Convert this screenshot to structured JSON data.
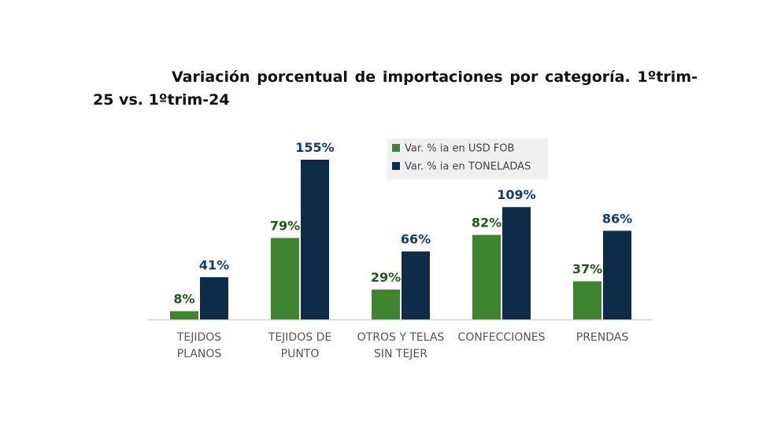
{
  "title": "Variación porcentual de importaciones por categoría. 1ºtrim-25 vs. 1ºtrim-24",
  "colors": {
    "usd": "#3f852f",
    "ton": "#0e2c48",
    "usd_label": "#1d5a18",
    "ton_label": "#123a6b",
    "axis": "#d0d0d0",
    "legend_bg": "#efefef"
  },
  "chart_data": {
    "type": "bar",
    "title": "Variación porcentual de importaciones por categoría. 1ºtrim-25 vs. 1ºtrim-24",
    "categories": [
      [
        "TEJIDOS",
        "PLANOS"
      ],
      [
        "TEJIDOS DE",
        "PUNTO"
      ],
      [
        "OTROS Y TELAS",
        "SIN TEJER"
      ],
      [
        "CONFECCIONES"
      ],
      [
        "PRENDAS"
      ]
    ],
    "series": [
      {
        "name": "Var. % ia en USD FOB",
        "values": [
          8,
          79,
          29,
          82,
          37
        ],
        "labels": [
          "8%",
          "79%",
          "29%",
          "82%",
          "37%"
        ]
      },
      {
        "name": "Var. % ia en TONELADAS",
        "values": [
          41,
          155,
          66,
          109,
          86
        ],
        "labels": [
          "41%",
          "155%",
          "66%",
          "109%",
          "86%"
        ]
      }
    ],
    "xlabel": "",
    "ylabel": "",
    "ylim": [
      0,
      155
    ],
    "grid": false,
    "legend": "top-center"
  }
}
